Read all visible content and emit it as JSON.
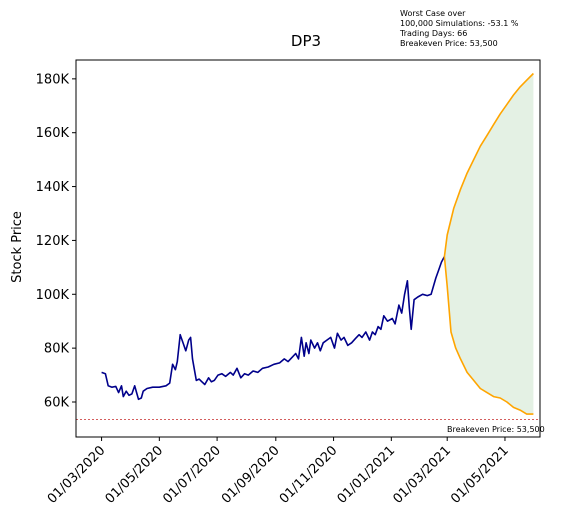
{
  "chart_data": {
    "type": "line",
    "title": "DP3",
    "ylabel": "Stock Price",
    "xlabel": "",
    "xlim": [
      "2020-02-03",
      "2021-06-07"
    ],
    "ylim": [
      47000,
      187000
    ],
    "y_ticks": [
      {
        "value": 60000,
        "label": "60K"
      },
      {
        "value": 80000,
        "label": "80K"
      },
      {
        "value": 100000,
        "label": "100K"
      },
      {
        "value": 120000,
        "label": "120K"
      },
      {
        "value": 140000,
        "label": "140K"
      },
      {
        "value": 160000,
        "label": "160K"
      },
      {
        "value": 180000,
        "label": "180K"
      }
    ],
    "x_ticks": [
      {
        "value": "2020-03-01",
        "label": "01/03/2020"
      },
      {
        "value": "2020-05-01",
        "label": "01/05/2020"
      },
      {
        "value": "2020-07-01",
        "label": "01/07/2020"
      },
      {
        "value": "2020-09-01",
        "label": "01/09/2020"
      },
      {
        "value": "2020-11-01",
        "label": "01/11/2020"
      },
      {
        "value": "2021-01-01",
        "label": "01/01/2021"
      },
      {
        "value": "2021-03-01",
        "label": "01/03/2021"
      },
      {
        "value": "2021-05-01",
        "label": "01/05/2021"
      }
    ],
    "grid": false,
    "colors": {
      "history": "#00008b",
      "projection": "#ffa500",
      "band_fill": "#e4f1e4",
      "breakeven": "#c62828"
    },
    "series": [
      {
        "role": "history",
        "points": [
          [
            "2020-03-01",
            71000
          ],
          [
            "2020-03-05",
            70500
          ],
          [
            "2020-03-08",
            66000
          ],
          [
            "2020-03-12",
            65500
          ],
          [
            "2020-03-16",
            65800
          ],
          [
            "2020-03-19",
            63500
          ],
          [
            "2020-03-22",
            66000
          ],
          [
            "2020-03-24",
            62000
          ],
          [
            "2020-03-27",
            64000
          ],
          [
            "2020-03-30",
            62500
          ],
          [
            "2020-04-02",
            63000
          ],
          [
            "2020-04-05",
            66000
          ],
          [
            "2020-04-07",
            63500
          ],
          [
            "2020-04-09",
            61000
          ],
          [
            "2020-04-12",
            61500
          ],
          [
            "2020-04-14",
            64000
          ],
          [
            "2020-04-18",
            65000
          ],
          [
            "2020-04-24",
            65500
          ],
          [
            "2020-05-01",
            65500
          ],
          [
            "2020-05-08",
            66000
          ],
          [
            "2020-05-12",
            67000
          ],
          [
            "2020-05-15",
            74000
          ],
          [
            "2020-05-18",
            72000
          ],
          [
            "2020-05-20",
            75000
          ],
          [
            "2020-05-23",
            85000
          ],
          [
            "2020-05-26",
            82000
          ],
          [
            "2020-05-29",
            79000
          ],
          [
            "2020-06-01",
            83000
          ],
          [
            "2020-06-03",
            84000
          ],
          [
            "2020-06-05",
            76000
          ],
          [
            "2020-06-07",
            72000
          ],
          [
            "2020-06-09",
            68000
          ],
          [
            "2020-06-12",
            68500
          ],
          [
            "2020-06-15",
            67500
          ],
          [
            "2020-06-18",
            66500
          ],
          [
            "2020-06-22",
            69000
          ],
          [
            "2020-06-25",
            67500
          ],
          [
            "2020-06-28",
            68000
          ],
          [
            "2020-07-02",
            70000
          ],
          [
            "2020-07-06",
            70500
          ],
          [
            "2020-07-10",
            69500
          ],
          [
            "2020-07-15",
            71000
          ],
          [
            "2020-07-18",
            70000
          ],
          [
            "2020-07-22",
            72500
          ],
          [
            "2020-07-26",
            69000
          ],
          [
            "2020-07-30",
            70500
          ],
          [
            "2020-08-03",
            70000
          ],
          [
            "2020-08-08",
            71500
          ],
          [
            "2020-08-13",
            71000
          ],
          [
            "2020-08-18",
            72500
          ],
          [
            "2020-08-24",
            73000
          ],
          [
            "2020-08-30",
            74000
          ],
          [
            "2020-09-05",
            74500
          ],
          [
            "2020-09-10",
            76000
          ],
          [
            "2020-09-14",
            75000
          ],
          [
            "2020-09-18",
            76500
          ],
          [
            "2020-09-22",
            78000
          ],
          [
            "2020-09-25",
            76000
          ],
          [
            "2020-09-28",
            84000
          ],
          [
            "2020-10-01",
            77000
          ],
          [
            "2020-10-03",
            82000
          ],
          [
            "2020-10-06",
            78000
          ],
          [
            "2020-10-08",
            83000
          ],
          [
            "2020-10-12",
            80000
          ],
          [
            "2020-10-15",
            82000
          ],
          [
            "2020-10-18",
            79000
          ],
          [
            "2020-10-21",
            82000
          ],
          [
            "2020-10-25",
            83000
          ],
          [
            "2020-10-29",
            84000
          ],
          [
            "2020-11-02",
            80000
          ],
          [
            "2020-11-05",
            85500
          ],
          [
            "2020-11-09",
            83000
          ],
          [
            "2020-11-12",
            84000
          ],
          [
            "2020-11-16",
            81000
          ],
          [
            "2020-11-20",
            82000
          ],
          [
            "2020-11-24",
            83500
          ],
          [
            "2020-11-28",
            85000
          ],
          [
            "2020-12-01",
            84000
          ],
          [
            "2020-12-05",
            86000
          ],
          [
            "2020-12-09",
            83000
          ],
          [
            "2020-12-12",
            86000
          ],
          [
            "2020-12-15",
            85000
          ],
          [
            "2020-12-18",
            88000
          ],
          [
            "2020-12-21",
            87000
          ],
          [
            "2020-12-24",
            92000
          ],
          [
            "2020-12-28",
            90000
          ],
          [
            "2021-01-02",
            91000
          ],
          [
            "2021-01-05",
            89000
          ],
          [
            "2021-01-09",
            96000
          ],
          [
            "2021-01-12",
            93000
          ],
          [
            "2021-01-15",
            100000
          ],
          [
            "2021-01-18",
            105000
          ],
          [
            "2021-01-20",
            95000
          ],
          [
            "2021-01-22",
            87000
          ],
          [
            "2021-01-25",
            98000
          ],
          [
            "2021-01-29",
            99000
          ],
          [
            "2021-02-03",
            100000
          ],
          [
            "2021-02-08",
            99500
          ],
          [
            "2021-02-12",
            100000
          ],
          [
            "2021-02-17",
            106000
          ],
          [
            "2021-02-20",
            109000
          ],
          [
            "2021-02-23",
            112000
          ],
          [
            "2021-02-26",
            114000
          ]
        ]
      },
      {
        "role": "projection-upper",
        "points": [
          [
            "2021-02-26",
            114000
          ],
          [
            "2021-03-01",
            122000
          ],
          [
            "2021-03-08",
            132000
          ],
          [
            "2021-03-15",
            139000
          ],
          [
            "2021-03-22",
            145000
          ],
          [
            "2021-03-29",
            150000
          ],
          [
            "2021-04-05",
            155000
          ],
          [
            "2021-04-12",
            159000
          ],
          [
            "2021-04-19",
            163000
          ],
          [
            "2021-04-26",
            167000
          ],
          [
            "2021-05-03",
            170500
          ],
          [
            "2021-05-10",
            174000
          ],
          [
            "2021-05-17",
            177000
          ],
          [
            "2021-05-24",
            179500
          ],
          [
            "2021-05-31",
            182000
          ]
        ]
      },
      {
        "role": "projection-lower",
        "points": [
          [
            "2021-02-26",
            114000
          ],
          [
            "2021-03-01",
            103000
          ],
          [
            "2021-03-05",
            86000
          ],
          [
            "2021-03-10",
            80000
          ],
          [
            "2021-03-15",
            76000
          ],
          [
            "2021-03-22",
            71000
          ],
          [
            "2021-03-29",
            68000
          ],
          [
            "2021-04-05",
            65000
          ],
          [
            "2021-04-12",
            63500
          ],
          [
            "2021-04-19",
            62000
          ],
          [
            "2021-04-26",
            61500
          ],
          [
            "2021-05-03",
            60000
          ],
          [
            "2021-05-10",
            58000
          ],
          [
            "2021-05-17",
            57000
          ],
          [
            "2021-05-24",
            55500
          ],
          [
            "2021-05-31",
            55500
          ]
        ]
      }
    ],
    "breakeven": {
      "value": 53500,
      "label": "Breakeven Price: 53,500"
    },
    "annotation": [
      "Worst Case over",
      "100,000 Simulations: -53.1 %",
      "Trading Days: 66",
      "Breakeven Price: 53,500"
    ]
  }
}
